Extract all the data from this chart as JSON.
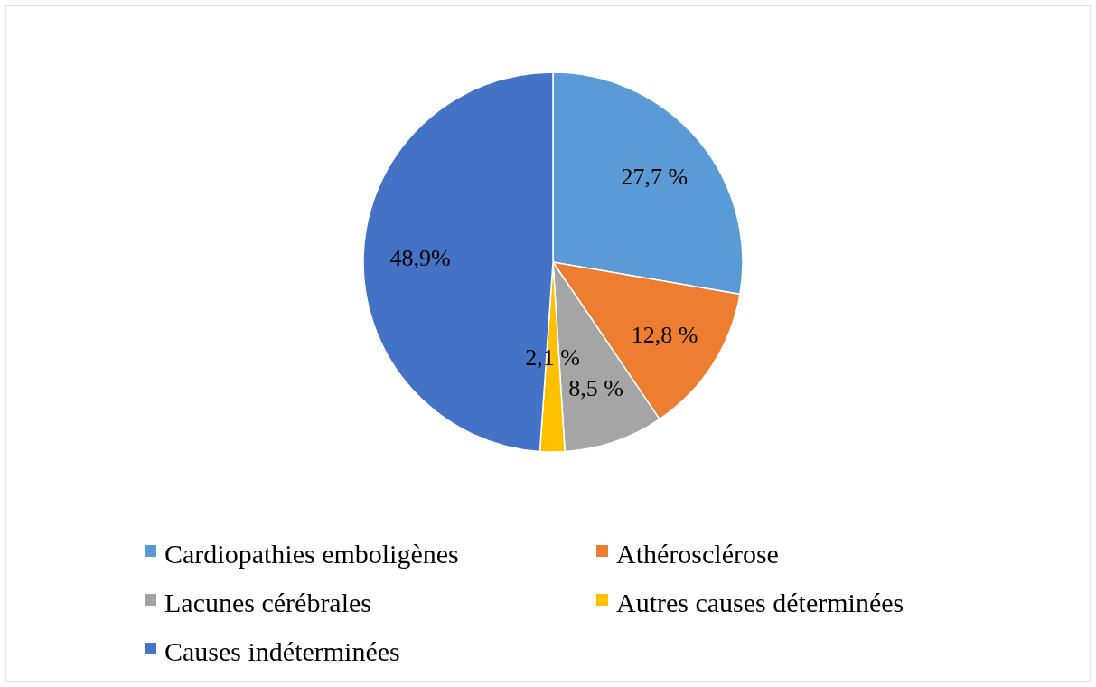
{
  "chart_data": {
    "type": "pie",
    "categories": [
      "Cardiopathies emboligènes",
      "Athérosclérose",
      "Lacunes cérébrales",
      "Autres causes déterminées",
      "Causes indéterminées"
    ],
    "values": [
      27.7,
      12.8,
      8.5,
      2.1,
      48.9
    ],
    "colors": [
      "#5b9bd5",
      "#ed7d31",
      "#a5a5a5",
      "#ffc000",
      "#4472c4"
    ],
    "value_labels": [
      "27,7 %",
      "12,8 %",
      "8,5 %",
      "2,1 %",
      "48,9%"
    ],
    "legend": "bottom"
  }
}
